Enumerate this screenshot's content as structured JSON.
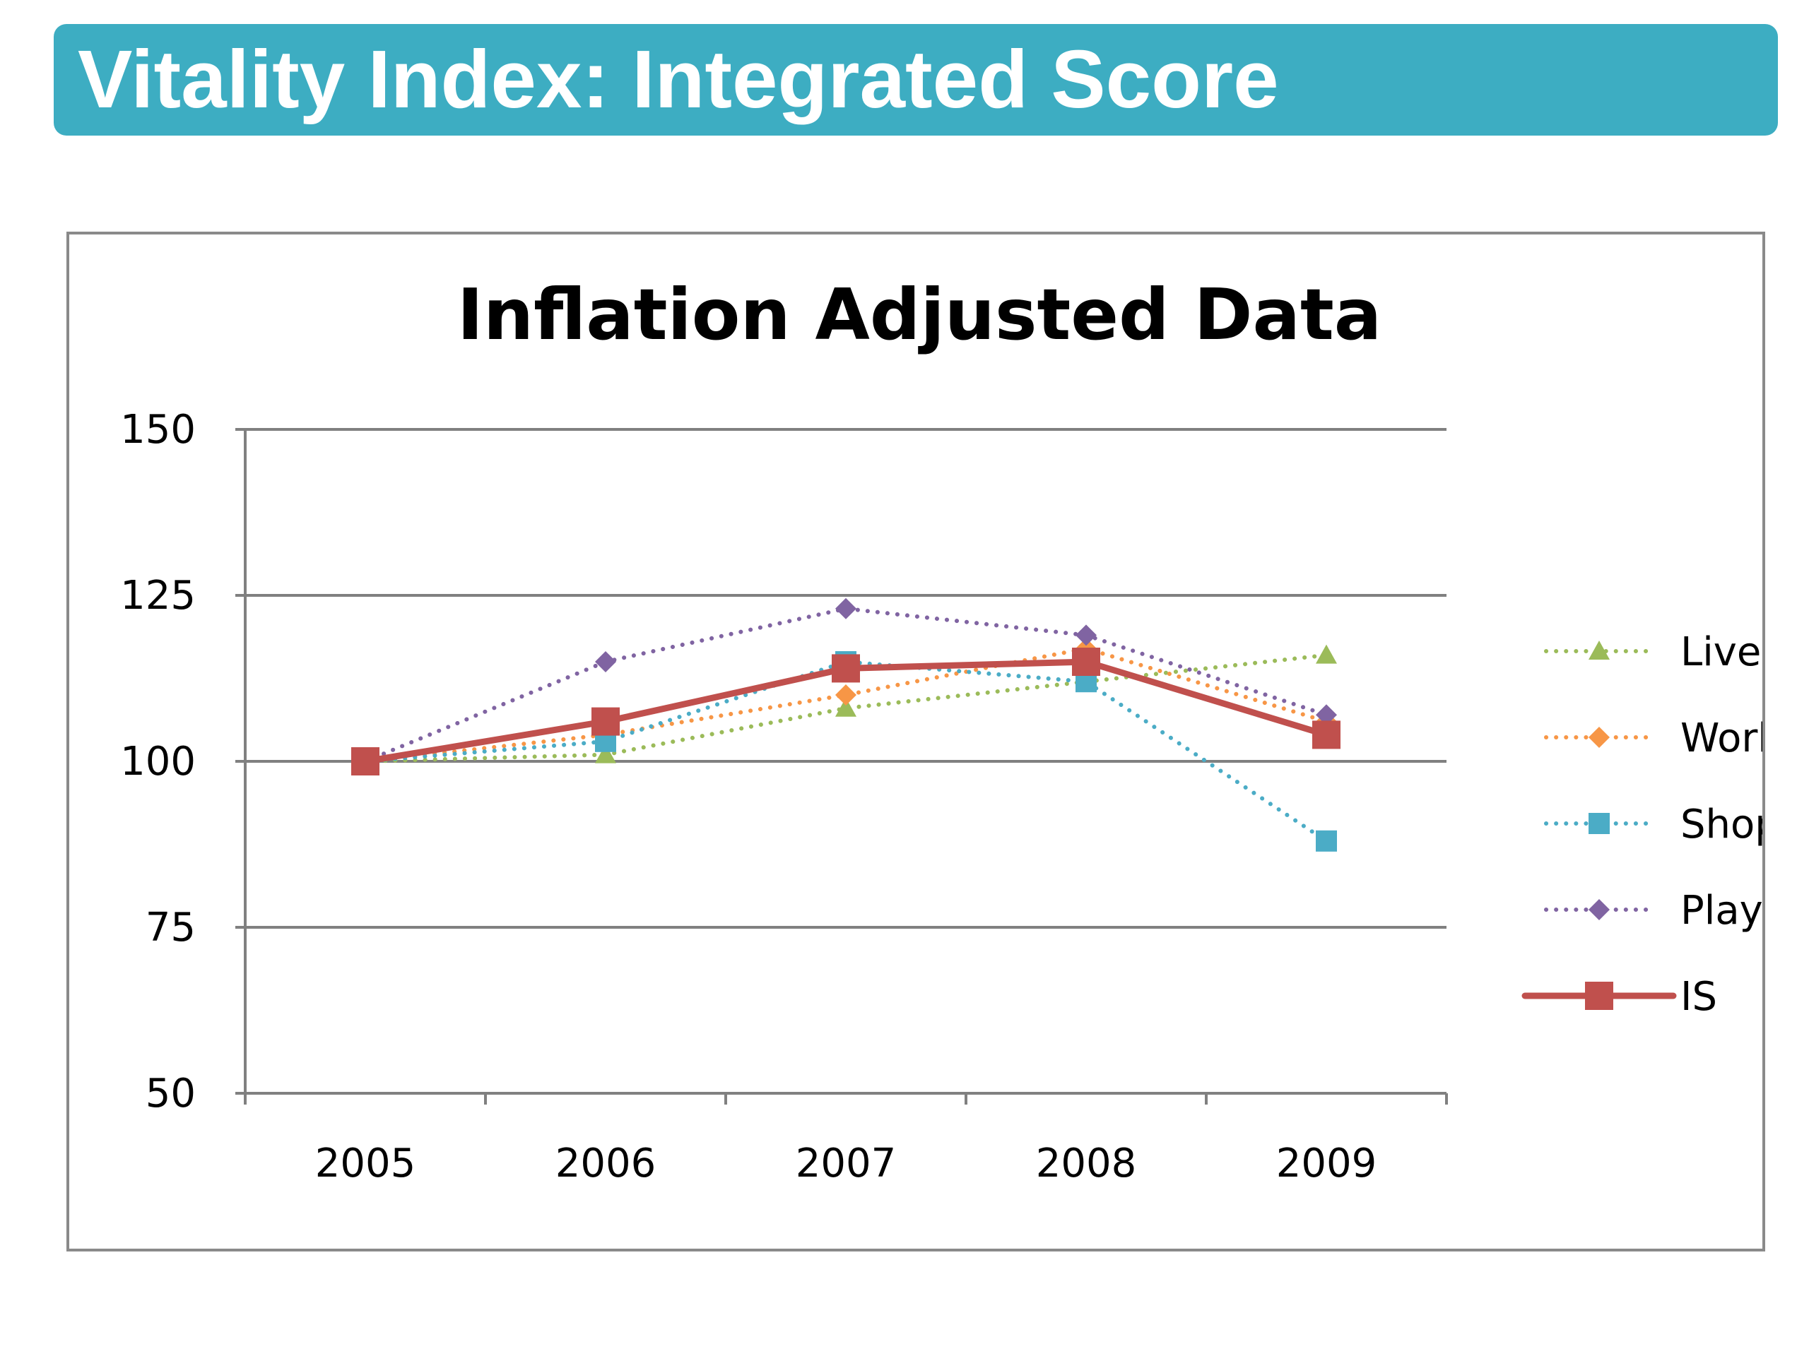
{
  "slide": {
    "title": "Vitality Index: Integrated Score"
  },
  "colors": {
    "banner": "#3DADC2",
    "axis": "#808080",
    "live": "#9BBB59",
    "work": "#F79646",
    "shop": "#4BACC6",
    "play": "#8064A2",
    "is": "#C0504D"
  },
  "chart_data": {
    "type": "line",
    "title": "Inflation Adjusted Data",
    "xlabel": "",
    "ylabel": "",
    "categories": [
      "2005",
      "2006",
      "2007",
      "2008",
      "2009"
    ],
    "ylim": [
      50,
      150
    ],
    "yticks": [
      50,
      75,
      100,
      125,
      150
    ],
    "grid": true,
    "legend_position": "right",
    "series": [
      {
        "name": "Live",
        "values": [
          100,
          101,
          108,
          112,
          116
        ],
        "color": "#9BBB59",
        "marker": "triangle",
        "line_style": "dotted"
      },
      {
        "name": "Work",
        "values": [
          100,
          104,
          110,
          117,
          106
        ],
        "color": "#F79646",
        "marker": "diamond",
        "line_style": "dotted"
      },
      {
        "name": "Shop",
        "values": [
          100,
          103,
          115,
          112,
          88
        ],
        "color": "#4BACC6",
        "marker": "square",
        "line_style": "dotted"
      },
      {
        "name": "Play",
        "values": [
          100,
          115,
          123,
          119,
          107
        ],
        "color": "#8064A2",
        "marker": "diamond",
        "line_style": "dotted"
      },
      {
        "name": "IS",
        "values": [
          100,
          106,
          114,
          115,
          104
        ],
        "color": "#C0504D",
        "marker": "square",
        "line_style": "solid"
      }
    ]
  }
}
